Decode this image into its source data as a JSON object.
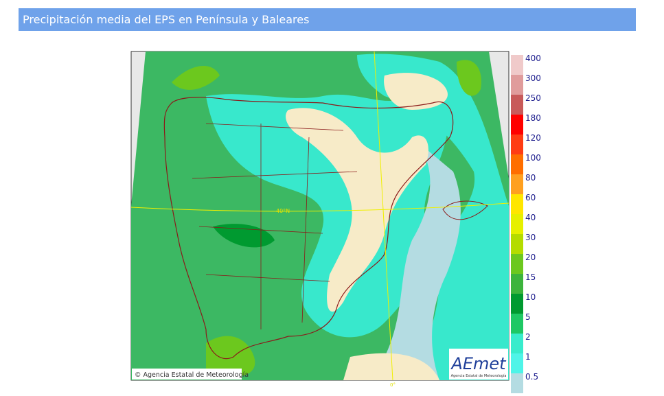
{
  "header": {
    "title": "Precipitación media del EPS en Península y Baleares"
  },
  "map": {
    "labels": {
      "latitude": "40°N",
      "longitude": "0°"
    },
    "credit": "© Agencia Estatal de Meteorología",
    "logo": {
      "name": "AEmet",
      "subtitle": "Agencia Estatal de Meteorología"
    }
  },
  "legend": {
    "levels": [
      400,
      300,
      250,
      180,
      120,
      100,
      80,
      60,
      40,
      30,
      20,
      15,
      10,
      5,
      2,
      1,
      0.5
    ],
    "colors": [
      "#f0caca",
      "#e09c9c",
      "#c85a5a",
      "#ff0000",
      "#ff3c14",
      "#ff6e00",
      "#ffa020",
      "#ffe600",
      "#e6f000",
      "#b4dc00",
      "#6cc81e",
      "#3cb43c",
      "#009a30",
      "#1ec864",
      "#38eccc",
      "#4ef4e8",
      "#b4dce2"
    ]
  }
}
